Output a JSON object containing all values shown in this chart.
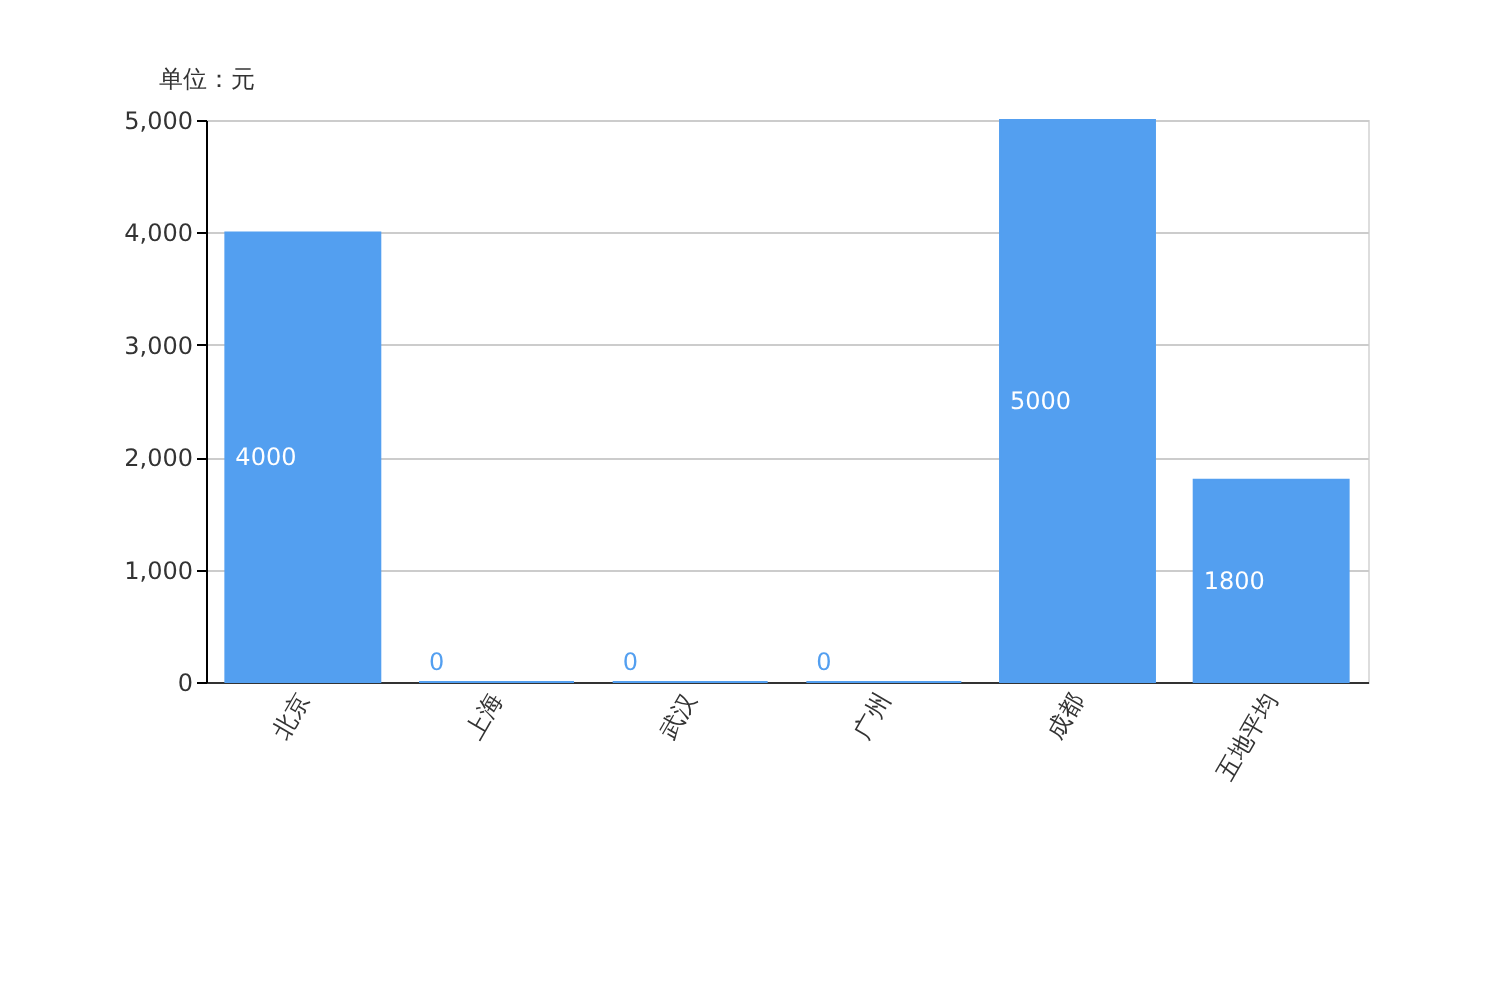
{
  "chart_data": {
    "type": "bar",
    "ylabel": "单位：元",
    "categories": [
      "北京",
      "上海",
      "武汉",
      "广州",
      "成都",
      "五地平均"
    ],
    "series": [
      {
        "color": "#539ff0",
        "values": [
          4000,
          0,
          0,
          0,
          5000,
          1800
        ]
      }
    ],
    "ylim": [
      0,
      5000
    ],
    "yticks": [
      {
        "value": 0,
        "label": "0"
      },
      {
        "value": 1000,
        "label": "1,000"
      },
      {
        "value": 2000,
        "label": "2,000"
      },
      {
        "value": 3000,
        "label": "3,000"
      },
      {
        "value": 4000,
        "label": "4,000"
      },
      {
        "value": 5000,
        "label": "5,000"
      }
    ],
    "grid": "y",
    "data_labels": true
  }
}
